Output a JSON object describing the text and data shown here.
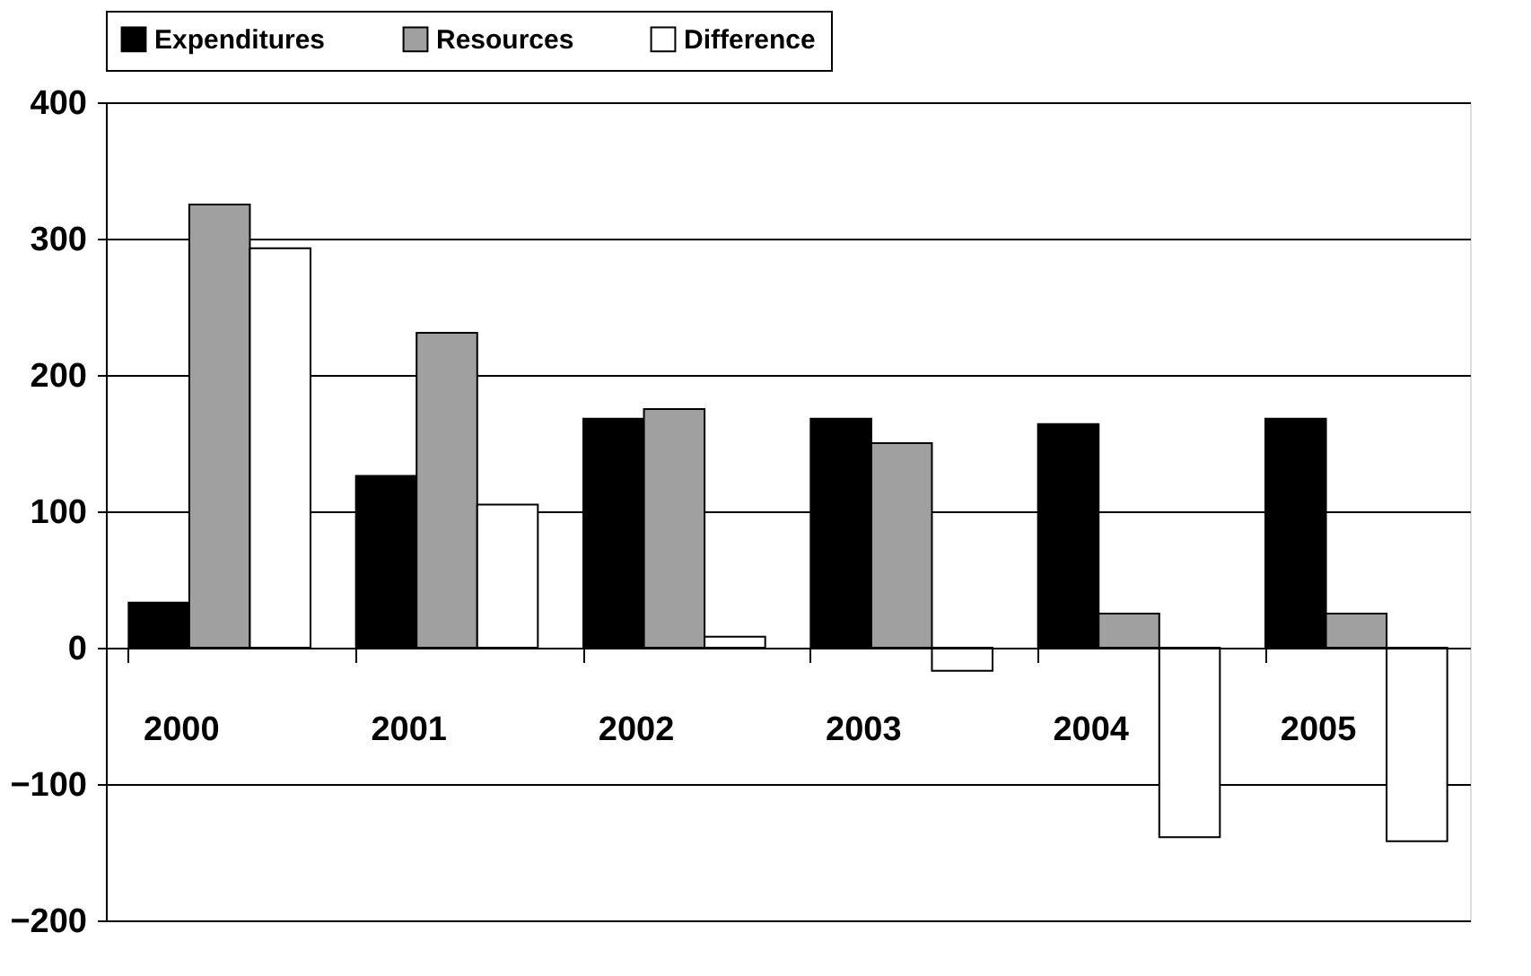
{
  "chart_data": {
    "type": "bar",
    "categories": [
      "2000",
      "2001",
      "2002",
      "2003",
      "2004",
      "2005"
    ],
    "series": [
      {
        "name": "Expenditures",
        "color": "#000000",
        "values": [
          33,
          126,
          168,
          168,
          164,
          168
        ]
      },
      {
        "name": "Resources",
        "color": "#a0a0a0",
        "values": [
          325,
          231,
          175,
          150,
          25,
          25
        ]
      },
      {
        "name": "Difference",
        "color": "#ffffff",
        "values": [
          293,
          105,
          8,
          -17,
          -139,
          -142
        ]
      }
    ],
    "ylim": [
      -200,
      400
    ],
    "yticks": [
      -200,
      -100,
      0,
      100,
      200,
      300,
      400
    ],
    "grid": "y",
    "legend": "top"
  }
}
